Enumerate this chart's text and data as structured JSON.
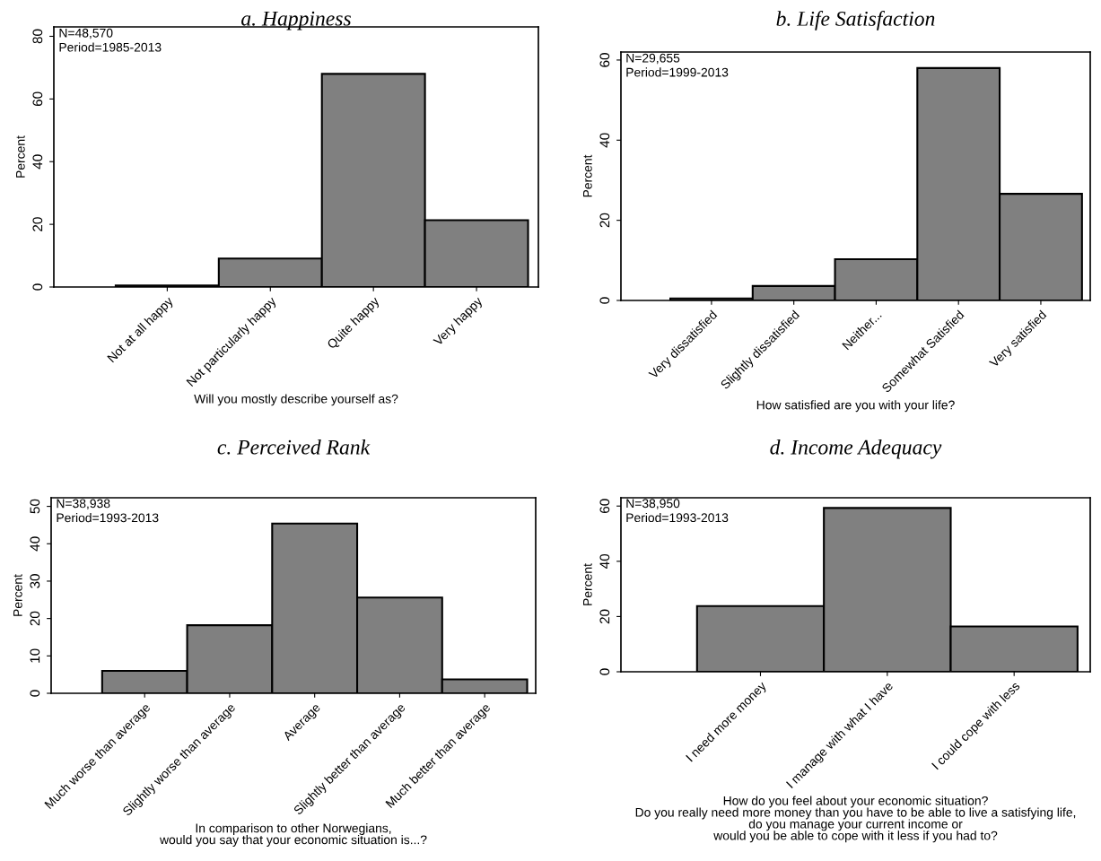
{
  "chart_data": [
    {
      "type": "bar",
      "title": "a. Happiness",
      "xlabel": "Will you mostly describe yourself as?",
      "ylabel": "Percent",
      "categories": [
        "Not at all happy",
        "Not particularly happy",
        "Quite happy",
        "Very happy"
      ],
      "values": [
        0.5,
        9.1,
        68,
        21.3
      ],
      "color": "#808080",
      "ylim": [
        0,
        83
      ],
      "yticks": [
        0,
        20,
        40,
        60,
        80
      ],
      "grid": false,
      "annotations": [
        "N=48,570",
        "Period=1985-2013"
      ]
    },
    {
      "type": "bar",
      "title": "b. Life Satisfaction",
      "xlabel": "How satisfied are you with your life?",
      "ylabel": "Percent",
      "categories": [
        "Very dissatisfied",
        "Slightly dissatisfied",
        "Neither...",
        "Somewhat Satisfied",
        "Very satisfied"
      ],
      "values": [
        0.5,
        3.6,
        10.3,
        58,
        26.6
      ],
      "color": "#808080",
      "ylim": [
        0,
        62
      ],
      "yticks": [
        0,
        20,
        40,
        60
      ],
      "grid": false,
      "annotations": [
        "N=29,655",
        "Period=1999-2013"
      ]
    },
    {
      "type": "bar",
      "title": "c. Perceived Rank",
      "xlabel": "In comparison to other Norwegians,\nwould you say that your economic situation is...?",
      "ylabel": "Percent",
      "categories": [
        "Much worse than average",
        "Slightly worse than average",
        "Average",
        "Slightly better than average",
        "Much better than average"
      ],
      "values": [
        6,
        18.2,
        45.4,
        25.6,
        3.7
      ],
      "color": "#808080",
      "ylim": [
        0,
        52.3
      ],
      "yticks": [
        0,
        10,
        20,
        30,
        40,
        50
      ],
      "grid": false,
      "annotations": [
        "N=38,938",
        "Period=1993-2013"
      ]
    },
    {
      "type": "bar",
      "title": "d. Income Adequacy",
      "xlabel": "How do you feel about your economic situation?\nDo you really need more money than you have to be able to live a satisfying life,\ndo you manage your current income or\nwould you be able to cope with it less if you had to?",
      "ylabel": "Percent",
      "categories": [
        "I need more money",
        "I manage with what I have",
        "I could cope with less"
      ],
      "values": [
        23.8,
        59.3,
        16.4
      ],
      "color": "#808080",
      "ylim": [
        0,
        63
      ],
      "yticks": [
        0,
        20,
        40,
        60
      ],
      "grid": false,
      "annotations": [
        "N=38,950",
        "Period=1993-2013"
      ]
    }
  ]
}
